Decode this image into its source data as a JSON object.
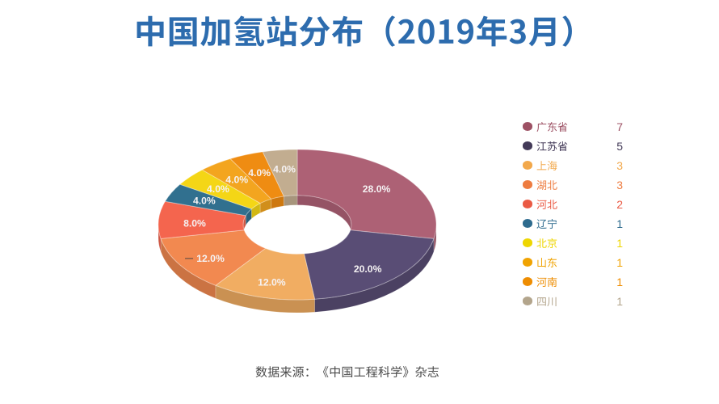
{
  "page": {
    "background": "#ffffff"
  },
  "title": "中国加氢站分布（2019年3月）",
  "title_color": "#2d6cae",
  "source_note": "数据来源：《中国工程科学》杂志",
  "source_color": "#4a4a4a",
  "chart_data": {
    "type": "pie",
    "style": "3d-donut",
    "title": "中国加氢站分布（2019年3月）",
    "unit_total": 25,
    "legend_position": "right",
    "label_format": "percent-one-decimal",
    "series": [
      {
        "name": "广东省",
        "value": 7,
        "percent": "28.0%",
        "color": "#9d5164",
        "top_color": "#ad6175"
      },
      {
        "name": "江苏省",
        "value": 5,
        "percent": "20.0%",
        "color": "#433a58",
        "top_color": "#594d75"
      },
      {
        "name": "上海",
        "value": 3,
        "percent": "12.0%",
        "color": "#f2a84b",
        "top_color": "#f1ad62"
      },
      {
        "name": "湖北",
        "value": 3,
        "percent": "12.0%",
        "color": "#ee7c40",
        "top_color": "#f28950"
      },
      {
        "name": "河北",
        "value": 2,
        "percent": "8.0%",
        "color": "#ea5a44",
        "top_color": "#f4654e"
      },
      {
        "name": "辽宁",
        "value": 1,
        "percent": "4.0%",
        "color": "#2e6b8e",
        "top_color": "#31708f"
      },
      {
        "name": "北京",
        "value": 1,
        "percent": "4.0%",
        "color": "#eed602",
        "top_color": "#f4d616"
      },
      {
        "name": "山东",
        "value": 1,
        "percent": "4.0%",
        "color": "#f0a302",
        "top_color": "#f3a51f"
      },
      {
        "name": "河南",
        "value": 1,
        "percent": "4.0%",
        "color": "#ee8d02",
        "top_color": "#ef8c12"
      },
      {
        "name": "四川",
        "value": 1,
        "percent": "4.0%",
        "color": "#b3a58c",
        "top_color": "#c2ad90"
      }
    ]
  }
}
